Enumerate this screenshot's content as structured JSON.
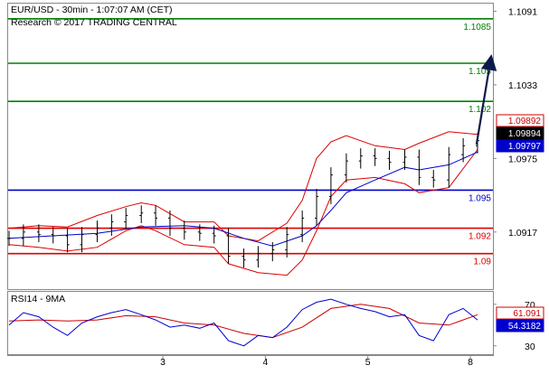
{
  "header": {
    "instrument_line": "EUR/USD - 30min - 1:07:07 AM (CET)",
    "copyright_line": "Research © 2017 TRADING CENTRAL"
  },
  "colors": {
    "target_green": "#008000",
    "pivot_blue": "#0000cc",
    "support_red": "#dd0000",
    "bollinger_red": "#dd0000",
    "moving_average_blue": "#0000cc",
    "candle_black": "#000000",
    "projection_arrow": "#0a1a4a",
    "axis_gray": "#888888",
    "last_price_black": "#000000",
    "upper_band_red": "#cc0000",
    "ma_price_blue": "#0000cc",
    "rsi_line_blue": "#0000cc",
    "rsi_ma_red": "#cc0000"
  },
  "chart_data": [
    {
      "type": "candlestick",
      "title": "EUR/USD - 30min - 1:07:07 AM (CET)",
      "ylim": [
        1.0872,
        1.1097
      ],
      "y_ticks": [
        1.0917,
        1.0975,
        1.1033,
        1.1091
      ],
      "x_ticks": [
        "3",
        "4",
        "5",
        "8"
      ],
      "x_tick_positions": [
        1.5,
        2.5,
        3.5,
        4.5
      ],
      "price_labels": [
        {
          "value": 1.09892,
          "text": "1.09892",
          "style": "outlined-red"
        },
        {
          "value": 1.09894,
          "text": "1.09894",
          "style": "filled-black"
        },
        {
          "value": 1.09797,
          "text": "1.09797",
          "style": "filled-blue"
        }
      ],
      "levels": [
        {
          "value": 1.1085,
          "label": "1.1085",
          "type": "target",
          "color": "#008000"
        },
        {
          "value": 1.105,
          "label": "1.105",
          "type": "target",
          "color": "#008000"
        },
        {
          "value": 1.102,
          "label": "1.102",
          "type": "target",
          "color": "#008000"
        },
        {
          "value": 1.095,
          "label": "1.095",
          "type": "pivot",
          "color": "#0000cc"
        },
        {
          "value": 1.092,
          "label": "1.092",
          "type": "support",
          "color": "#dd0000"
        },
        {
          "value": 1.09,
          "label": "1.09",
          "type": "support",
          "color": "#dd0000"
        }
      ],
      "projection_arrow": {
        "from": [
          4.56,
          1.0986
        ],
        "to": [
          4.7,
          1.1054
        ]
      },
      "series": [
        {
          "kind": "close",
          "x": [
            0.0,
            0.14,
            0.29,
            0.43,
            0.57,
            0.71,
            0.86,
            1.0,
            1.14,
            1.29,
            1.43,
            1.57,
            1.71,
            1.86,
            2.0,
            2.14,
            2.29,
            2.43,
            2.57,
            2.71,
            2.86,
            3.0,
            3.14,
            3.29,
            3.43,
            3.57,
            3.71,
            3.86,
            4.0,
            4.14,
            4.29,
            4.43,
            4.57
          ],
          "values": [
            1.0912,
            1.0917,
            1.0915,
            1.0914,
            1.0907,
            1.0915,
            1.092,
            1.0925,
            1.093,
            1.0932,
            1.0928,
            1.092,
            1.0917,
            1.0916,
            1.0914,
            1.0898,
            1.0895,
            1.09,
            1.0903,
            1.0915,
            1.0928,
            1.0945,
            1.0962,
            1.0973,
            1.0977,
            1.0975,
            1.0972,
            1.0976,
            1.096,
            1.0958,
            1.0978,
            1.0985,
            1.0989
          ]
        },
        {
          "kind": "bollinger_upper",
          "x": [
            0.0,
            0.29,
            0.57,
            0.86,
            1.14,
            1.29,
            1.43,
            1.71,
            2.0,
            2.14,
            2.43,
            2.71,
            2.86,
            3.0,
            3.14,
            3.29,
            3.57,
            3.86,
            4.0,
            4.29,
            4.57
          ],
          "values": [
            1.092,
            1.0922,
            1.0921,
            1.093,
            1.0937,
            1.094,
            1.0938,
            1.0925,
            1.0925,
            1.0914,
            1.091,
            1.0924,
            1.0942,
            1.0975,
            1.0988,
            1.0993,
            1.0985,
            1.0982,
            1.0987,
            1.0996,
            1.0994
          ]
        },
        {
          "kind": "bollinger_lower",
          "x": [
            0.0,
            0.29,
            0.57,
            0.86,
            1.14,
            1.29,
            1.43,
            1.71,
            2.0,
            2.14,
            2.43,
            2.71,
            2.86,
            3.0,
            3.14,
            3.29,
            3.57,
            3.86,
            4.0,
            4.29,
            4.57
          ],
          "values": [
            1.0907,
            1.0905,
            1.0902,
            1.0905,
            1.0918,
            1.0922,
            1.0918,
            1.0907,
            1.0905,
            1.0892,
            1.0885,
            1.0883,
            1.0895,
            1.0918,
            1.0945,
            1.0958,
            1.096,
            1.0955,
            1.0948,
            1.0952,
            1.0982
          ]
        },
        {
          "kind": "moving_average",
          "x": [
            0.0,
            0.43,
            0.86,
            1.29,
            1.71,
            2.0,
            2.29,
            2.57,
            2.86,
            3.0,
            3.14,
            3.29,
            3.57,
            3.86,
            4.0,
            4.29,
            4.57
          ],
          "values": [
            1.0912,
            1.0914,
            1.0916,
            1.0921,
            1.0922,
            1.092,
            1.0912,
            1.0906,
            1.0914,
            1.0922,
            1.0934,
            1.0948,
            1.0958,
            1.0968,
            1.0966,
            1.097,
            1.098
          ]
        }
      ]
    },
    {
      "type": "line",
      "title": "RSI14 - 9MA",
      "ylim": [
        22,
        82
      ],
      "y_ticks": [
        30,
        70
      ],
      "price_labels": [
        {
          "value": 61.091,
          "text": "61.091",
          "style": "red"
        },
        {
          "value": 54.3182,
          "text": "54.3182",
          "style": "blue"
        }
      ],
      "series": [
        {
          "kind": "rsi",
          "x": [
            0.0,
            0.14,
            0.29,
            0.43,
            0.57,
            0.71,
            0.86,
            1.0,
            1.14,
            1.29,
            1.43,
            1.57,
            1.71,
            1.86,
            2.0,
            2.14,
            2.29,
            2.43,
            2.57,
            2.71,
            2.86,
            3.0,
            3.14,
            3.29,
            3.43,
            3.57,
            3.71,
            3.86,
            4.0,
            4.14,
            4.29,
            4.43,
            4.57
          ],
          "values": [
            50,
            62,
            58,
            48,
            40,
            52,
            58,
            62,
            65,
            60,
            55,
            48,
            50,
            47,
            52,
            35,
            30,
            40,
            38,
            48,
            65,
            72,
            75,
            70,
            66,
            63,
            58,
            60,
            40,
            35,
            60,
            66,
            55
          ]
        },
        {
          "kind": "rsi_ma",
          "x": [
            0.0,
            0.29,
            0.57,
            0.86,
            1.14,
            1.43,
            1.71,
            2.0,
            2.29,
            2.57,
            2.86,
            3.14,
            3.43,
            3.71,
            4.0,
            4.29,
            4.57
          ],
          "values": [
            54,
            55,
            54,
            55,
            59,
            58,
            52,
            50,
            42,
            38,
            48,
            66,
            70,
            66,
            52,
            50,
            60
          ]
        }
      ]
    }
  ]
}
